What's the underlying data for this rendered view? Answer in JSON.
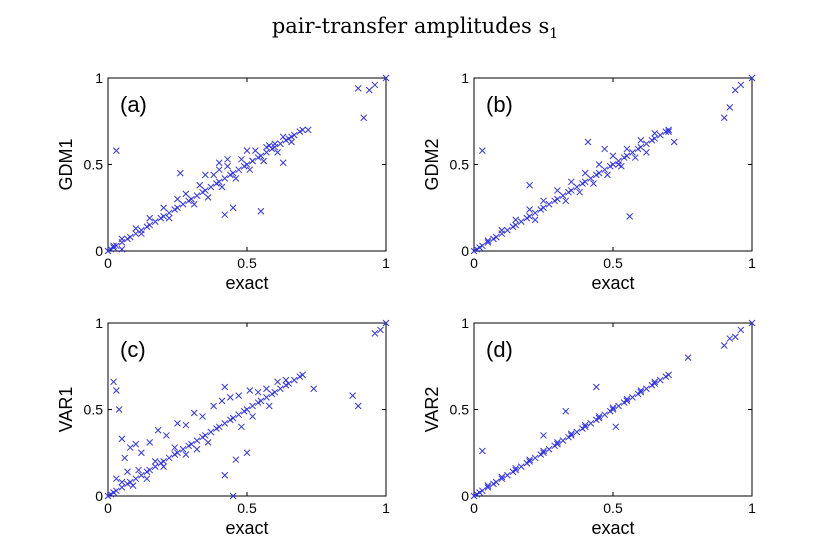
{
  "figure": {
    "title": "pair-transfer amplitudes s",
    "title_subscript": "1"
  },
  "chart_data": [
    {
      "type": "scatter",
      "panel_label": "(a)",
      "xlabel": "exact",
      "ylabel": "GDM1",
      "xlim": [
        0,
        1
      ],
      "ylim": [
        0,
        1
      ],
      "xticks": [
        "0",
        "0.5",
        "1"
      ],
      "yticks": [
        "0",
        "0.5",
        "1"
      ],
      "grid": false,
      "marker": "x",
      "color": "#3333e6",
      "series": [
        {
          "x": [
            0.0,
            0.01,
            0.02,
            0.03,
            0.05,
            0.07,
            0.08,
            0.1,
            0.12,
            0.14,
            0.15,
            0.17,
            0.19,
            0.2,
            0.22,
            0.24,
            0.25,
            0.27,
            0.29,
            0.3,
            0.32,
            0.34,
            0.35,
            0.37,
            0.39,
            0.4,
            0.42,
            0.44,
            0.45,
            0.47,
            0.49,
            0.5,
            0.52,
            0.54,
            0.55,
            0.57,
            0.59,
            0.6,
            0.62,
            0.64,
            0.65,
            0.67,
            0.69,
            0.7,
            0.02,
            0.05,
            0.1,
            0.15,
            0.2,
            0.25,
            0.28,
            0.33,
            0.38,
            0.43,
            0.48,
            0.53,
            0.58,
            0.63,
            0.12,
            0.22,
            0.31,
            0.36,
            0.41,
            0.46,
            0.51,
            0.56,
            0.61,
            0.66,
            0.03,
            0.05,
            0.26,
            0.35,
            0.4,
            0.43,
            0.5,
            0.52,
            0.57,
            0.6,
            0.42,
            0.45,
            0.55,
            0.63,
            0.66,
            0.72,
            0.4,
            0.9,
            0.92,
            0.94,
            0.96,
            1.0
          ],
          "y": [
            0.0,
            0.01,
            0.02,
            0.03,
            0.05,
            0.07,
            0.08,
            0.1,
            0.12,
            0.14,
            0.15,
            0.17,
            0.19,
            0.2,
            0.22,
            0.24,
            0.25,
            0.27,
            0.29,
            0.3,
            0.32,
            0.34,
            0.35,
            0.37,
            0.39,
            0.4,
            0.42,
            0.44,
            0.45,
            0.47,
            0.49,
            0.5,
            0.52,
            0.54,
            0.55,
            0.57,
            0.59,
            0.6,
            0.62,
            0.64,
            0.65,
            0.67,
            0.69,
            0.7,
            0.03,
            0.07,
            0.13,
            0.19,
            0.25,
            0.3,
            0.33,
            0.38,
            0.44,
            0.49,
            0.53,
            0.58,
            0.61,
            0.66,
            0.1,
            0.19,
            0.27,
            0.31,
            0.37,
            0.42,
            0.47,
            0.52,
            0.57,
            0.63,
            0.58,
            0.01,
            0.45,
            0.44,
            0.51,
            0.53,
            0.58,
            0.52,
            0.6,
            0.62,
            0.21,
            0.25,
            0.23,
            0.51,
            0.66,
            0.7,
            0.47,
            0.94,
            0.77,
            0.93,
            0.96,
            1.0
          ]
        }
      ]
    },
    {
      "type": "scatter",
      "panel_label": "(b)",
      "xlabel": "exact",
      "ylabel": "GDM2",
      "xlim": [
        0,
        1
      ],
      "ylim": [
        0,
        1
      ],
      "xticks": [
        "0",
        "0.5",
        "1"
      ],
      "yticks": [
        "0",
        "0.5",
        "1"
      ],
      "grid": false,
      "marker": "x",
      "color": "#3333e6",
      "series": [
        {
          "x": [
            0.0,
            0.01,
            0.02,
            0.03,
            0.05,
            0.07,
            0.08,
            0.1,
            0.12,
            0.14,
            0.15,
            0.17,
            0.19,
            0.2,
            0.22,
            0.24,
            0.25,
            0.27,
            0.29,
            0.3,
            0.32,
            0.34,
            0.35,
            0.37,
            0.39,
            0.4,
            0.42,
            0.44,
            0.45,
            0.47,
            0.49,
            0.5,
            0.52,
            0.54,
            0.55,
            0.57,
            0.59,
            0.6,
            0.62,
            0.64,
            0.65,
            0.67,
            0.69,
            0.7,
            0.05,
            0.1,
            0.15,
            0.2,
            0.25,
            0.3,
            0.35,
            0.4,
            0.45,
            0.5,
            0.55,
            0.6,
            0.65,
            0.22,
            0.33,
            0.38,
            0.43,
            0.48,
            0.53,
            0.58,
            0.03,
            0.47,
            0.41,
            0.52,
            0.2,
            0.56,
            0.62,
            0.7,
            0.72,
            0.9,
            0.92,
            0.94,
            0.96,
            1.0
          ],
          "y": [
            0.0,
            0.01,
            0.02,
            0.03,
            0.05,
            0.07,
            0.08,
            0.1,
            0.12,
            0.14,
            0.15,
            0.17,
            0.19,
            0.2,
            0.22,
            0.24,
            0.25,
            0.27,
            0.29,
            0.3,
            0.32,
            0.34,
            0.35,
            0.37,
            0.39,
            0.4,
            0.42,
            0.44,
            0.45,
            0.47,
            0.49,
            0.5,
            0.52,
            0.54,
            0.55,
            0.57,
            0.59,
            0.6,
            0.62,
            0.64,
            0.65,
            0.67,
            0.69,
            0.7,
            0.06,
            0.12,
            0.18,
            0.24,
            0.29,
            0.35,
            0.4,
            0.45,
            0.5,
            0.55,
            0.59,
            0.64,
            0.68,
            0.18,
            0.29,
            0.34,
            0.39,
            0.44,
            0.49,
            0.54,
            0.58,
            0.59,
            0.63,
            0.5,
            0.38,
            0.2,
            0.57,
            0.69,
            0.63,
            0.77,
            0.83,
            0.93,
            0.96,
            1.0
          ]
        }
      ]
    },
    {
      "type": "scatter",
      "panel_label": "(c)",
      "xlabel": "exact",
      "ylabel": "VAR1",
      "xlim": [
        0,
        1
      ],
      "ylim": [
        0,
        1
      ],
      "xticks": [
        "0",
        "0.5",
        "1"
      ],
      "yticks": [
        "0",
        "0.5",
        "1"
      ],
      "grid": false,
      "marker": "x",
      "color": "#3333e6",
      "series": [
        {
          "x": [
            0.0,
            0.01,
            0.02,
            0.03,
            0.05,
            0.07,
            0.08,
            0.1,
            0.12,
            0.14,
            0.15,
            0.17,
            0.19,
            0.2,
            0.22,
            0.24,
            0.25,
            0.27,
            0.29,
            0.3,
            0.32,
            0.34,
            0.35,
            0.37,
            0.39,
            0.4,
            0.42,
            0.44,
            0.45,
            0.47,
            0.49,
            0.5,
            0.52,
            0.54,
            0.55,
            0.57,
            0.59,
            0.6,
            0.62,
            0.64,
            0.65,
            0.67,
            0.69,
            0.7,
            0.02,
            0.03,
            0.04,
            0.05,
            0.06,
            0.08,
            0.1,
            0.12,
            0.15,
            0.18,
            0.21,
            0.25,
            0.28,
            0.31,
            0.34,
            0.38,
            0.41,
            0.44,
            0.47,
            0.51,
            0.54,
            0.57,
            0.61,
            0.64,
            0.03,
            0.05,
            0.07,
            0.09,
            0.11,
            0.14,
            0.17,
            0.2,
            0.24,
            0.28,
            0.32,
            0.36,
            0.42,
            0.48,
            0.52,
            0.58,
            0.42,
            0.46,
            0.45,
            0.5,
            0.74,
            0.88,
            0.9,
            0.96,
            0.98,
            1.0
          ],
          "y": [
            0.0,
            0.01,
            0.02,
            0.03,
            0.05,
            0.07,
            0.08,
            0.1,
            0.12,
            0.14,
            0.15,
            0.17,
            0.19,
            0.2,
            0.22,
            0.24,
            0.25,
            0.27,
            0.29,
            0.3,
            0.32,
            0.34,
            0.35,
            0.37,
            0.39,
            0.4,
            0.42,
            0.44,
            0.45,
            0.47,
            0.49,
            0.5,
            0.52,
            0.54,
            0.55,
            0.57,
            0.59,
            0.6,
            0.62,
            0.64,
            0.65,
            0.67,
            0.69,
            0.7,
            0.66,
            0.61,
            0.5,
            0.33,
            0.22,
            0.28,
            0.3,
            0.25,
            0.31,
            0.38,
            0.35,
            0.42,
            0.41,
            0.48,
            0.46,
            0.52,
            0.55,
            0.57,
            0.58,
            0.61,
            0.6,
            0.62,
            0.66,
            0.67,
            0.1,
            0.08,
            0.14,
            0.06,
            0.15,
            0.1,
            0.2,
            0.17,
            0.28,
            0.24,
            0.27,
            0.31,
            0.12,
            0.4,
            0.46,
            0.52,
            0.63,
            0.21,
            0.0,
            0.25,
            0.62,
            0.58,
            0.52,
            0.94,
            0.96,
            1.0
          ]
        }
      ]
    },
    {
      "type": "scatter",
      "panel_label": "(d)",
      "xlabel": "exact",
      "ylabel": "VAR2",
      "xlim": [
        0,
        1
      ],
      "ylim": [
        0,
        1
      ],
      "xticks": [
        "0",
        "0.5",
        "1"
      ],
      "yticks": [
        "0",
        "0.5",
        "1"
      ],
      "grid": false,
      "marker": "x",
      "color": "#3333e6",
      "series": [
        {
          "x": [
            0.0,
            0.01,
            0.02,
            0.03,
            0.05,
            0.07,
            0.08,
            0.1,
            0.12,
            0.14,
            0.15,
            0.17,
            0.19,
            0.2,
            0.22,
            0.24,
            0.25,
            0.27,
            0.29,
            0.3,
            0.32,
            0.34,
            0.35,
            0.37,
            0.39,
            0.4,
            0.42,
            0.44,
            0.45,
            0.47,
            0.49,
            0.5,
            0.52,
            0.54,
            0.55,
            0.57,
            0.59,
            0.6,
            0.62,
            0.64,
            0.65,
            0.67,
            0.69,
            0.7,
            0.05,
            0.1,
            0.15,
            0.2,
            0.25,
            0.3,
            0.35,
            0.4,
            0.45,
            0.5,
            0.55,
            0.6,
            0.65,
            0.03,
            0.33,
            0.44,
            0.25,
            0.51,
            0.77,
            0.9,
            0.92,
            0.94,
            0.96,
            1.0
          ],
          "y": [
            0.0,
            0.01,
            0.02,
            0.03,
            0.05,
            0.07,
            0.08,
            0.1,
            0.12,
            0.14,
            0.15,
            0.17,
            0.19,
            0.2,
            0.22,
            0.24,
            0.25,
            0.27,
            0.29,
            0.3,
            0.32,
            0.34,
            0.35,
            0.37,
            0.39,
            0.4,
            0.42,
            0.44,
            0.45,
            0.47,
            0.49,
            0.5,
            0.52,
            0.54,
            0.55,
            0.57,
            0.59,
            0.6,
            0.62,
            0.64,
            0.65,
            0.67,
            0.69,
            0.7,
            0.06,
            0.11,
            0.16,
            0.21,
            0.26,
            0.31,
            0.36,
            0.41,
            0.46,
            0.51,
            0.56,
            0.61,
            0.66,
            0.26,
            0.49,
            0.63,
            0.35,
            0.4,
            0.8,
            0.87,
            0.91,
            0.92,
            0.96,
            1.0
          ]
        }
      ]
    }
  ]
}
